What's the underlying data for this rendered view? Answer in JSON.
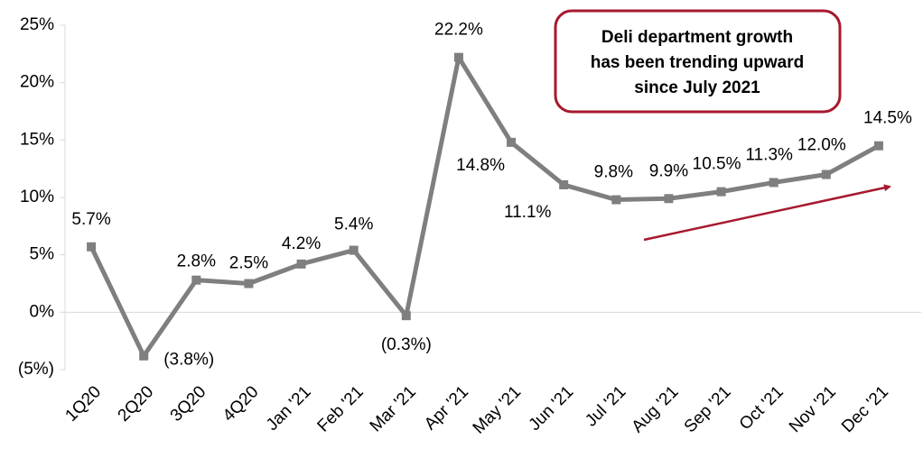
{
  "chart_data": {
    "type": "line",
    "categories": [
      "1Q20",
      "2Q20",
      "3Q20",
      "4Q20",
      "Jan '21",
      "Feb '21",
      "Mar '21",
      "Apr '21",
      "May '21",
      "Jun '21",
      "Jul '21",
      "Aug '21",
      "Sep '21",
      "Oct '21",
      "Nov '21",
      "Dec '21"
    ],
    "series": [
      {
        "color": "#7f7f7f",
        "values": [
          5.7,
          -3.8,
          2.8,
          2.5,
          4.2,
          5.4,
          -0.3,
          22.2,
          14.8,
          11.1,
          9.8,
          9.9,
          10.5,
          11.3,
          12.0,
          14.5
        ],
        "value_labels": [
          "5.7%",
          "(3.8%)",
          "2.8%",
          "2.5%",
          "4.2%",
          "5.4%",
          "(0.3%)",
          "22.2%",
          "14.8%",
          "11.1%",
          "9.8%",
          "9.9%",
          "10.5%",
          "11.3%",
          "12.0%",
          "14.5%"
        ]
      }
    ],
    "ylim": [
      -5,
      25
    ],
    "yticks": [
      {
        "value": -5,
        "label": "(5%)"
      },
      {
        "value": 0,
        "label": "0%"
      },
      {
        "value": 5,
        "label": "5%"
      },
      {
        "value": 10,
        "label": "10%"
      },
      {
        "value": 15,
        "label": "15%"
      },
      {
        "value": 20,
        "label": "20%"
      },
      {
        "value": 25,
        "label": "25%"
      }
    ],
    "grid": false,
    "annotation": [
      "Deli department growth",
      "has been trending upward",
      "since July 2021"
    ]
  }
}
